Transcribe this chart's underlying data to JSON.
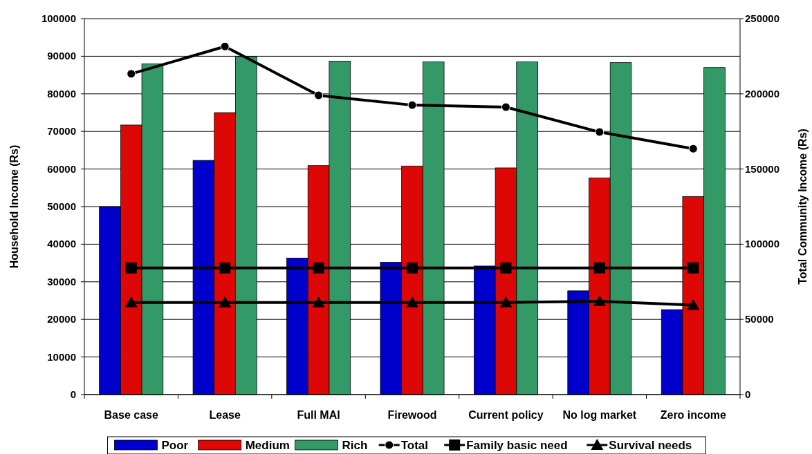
{
  "chart_data": {
    "type": "bar",
    "xlabel": null,
    "ylabel": "Household Income (Rs)",
    "y2label": "Total Community Income (Rs)",
    "categories": [
      "Base case",
      "Lease",
      "Full MAI",
      "Firewood",
      "Current policy",
      "No log market",
      "Zero income"
    ],
    "series": [
      {
        "name": "Poor",
        "color": "#0000cc",
        "values": [
          50000,
          62300,
          36300,
          35200,
          34200,
          27600,
          22600
        ]
      },
      {
        "name": "Medium",
        "color": "#dd0806",
        "values": [
          71700,
          75000,
          60900,
          60800,
          60300,
          57600,
          52700
        ]
      },
      {
        "name": "Rich",
        "color": "#339966",
        "values": [
          88000,
          89900,
          88700,
          88500,
          88500,
          88300,
          87000
        ]
      },
      {
        "name": "Total",
        "type": "line",
        "axis": "y2",
        "color": "#000000",
        "marker": "circle",
        "values": [
          213300,
          231500,
          199000,
          192500,
          191200,
          174600,
          163500
        ]
      },
      {
        "name": "Family basic need",
        "type": "line",
        "color": "#000000",
        "marker": "square",
        "values": [
          33700,
          33700,
          33700,
          33700,
          33700,
          33700,
          33700
        ]
      },
      {
        "name": "Survival needs",
        "type": "line",
        "color": "#000000",
        "marker": "triangle",
        "values": [
          24500,
          24500,
          24500,
          24500,
          24500,
          24800,
          23800
        ]
      }
    ],
    "ylim": [
      0,
      100000
    ],
    "yticks": [
      0,
      10000,
      20000,
      30000,
      40000,
      50000,
      60000,
      70000,
      80000,
      90000,
      100000
    ],
    "y2lim": [
      0,
      250000
    ],
    "y2ticks": [
      0,
      50000,
      100000,
      150000,
      200000,
      250000
    ],
    "grid": "y",
    "legend": "bottom"
  }
}
